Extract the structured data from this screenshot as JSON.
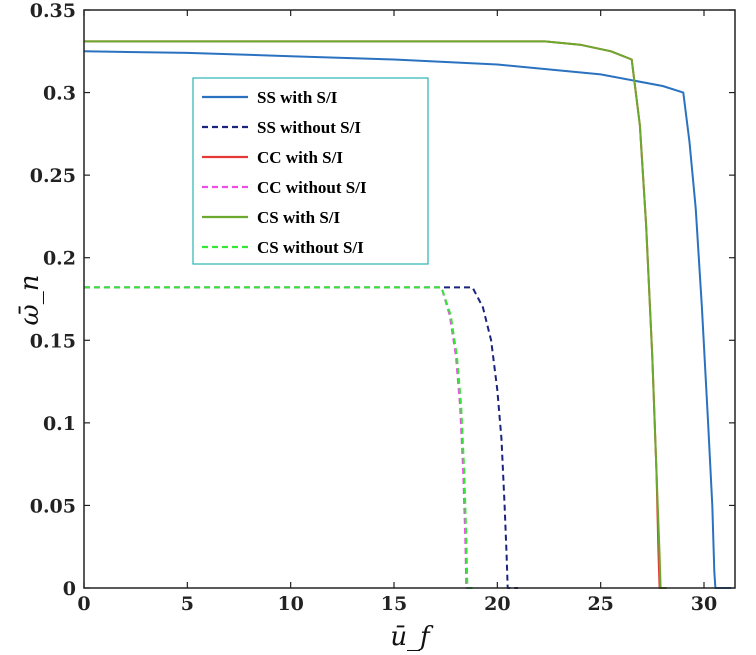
{
  "chart_data": {
    "type": "line",
    "title": "",
    "xlabel": "ū_f",
    "ylabel": "ω̄_n",
    "xlim": [
      0,
      31.5
    ],
    "ylim": [
      0,
      0.35
    ],
    "xticks": [
      0,
      5,
      10,
      15,
      20,
      25,
      30
    ],
    "yticks": [
      0,
      0.05,
      0.1,
      0.15,
      0.2,
      0.25,
      0.3,
      0.35
    ],
    "grid": false,
    "legend_position": "upper-left",
    "series": [
      {
        "name": "SS with S/I",
        "color": "#2a72c0",
        "dash": "solid",
        "x": [
          0,
          5,
          10,
          15,
          20,
          25,
          28.0,
          29.0,
          29.3,
          29.6,
          29.9,
          30.2,
          30.4,
          30.5,
          30.55,
          31.3
        ],
        "y": [
          0.325,
          0.324,
          0.322,
          0.32,
          0.317,
          0.311,
          0.304,
          0.3,
          0.27,
          0.23,
          0.17,
          0.1,
          0.05,
          0.01,
          0,
          0
        ]
      },
      {
        "name": "SS without S/I",
        "color": "#1a237e",
        "dash": "dashed",
        "x": [
          0,
          10,
          18.8,
          19.3,
          19.7,
          20.0,
          20.2,
          20.35,
          20.45,
          20.5,
          21.0
        ],
        "y": [
          0.182,
          0.182,
          0.182,
          0.17,
          0.15,
          0.12,
          0.09,
          0.05,
          0.02,
          0,
          0
        ]
      },
      {
        "name": "CC with S/I",
        "color": "#e53935",
        "dash": "solid",
        "x": [
          0,
          10,
          22.3,
          24,
          25.5,
          26.5,
          26.9,
          27.2,
          27.5,
          27.7,
          27.8,
          27.85,
          28.0
        ],
        "y": [
          0.331,
          0.331,
          0.331,
          0.329,
          0.325,
          0.32,
          0.28,
          0.22,
          0.14,
          0.07,
          0.02,
          0,
          0
        ]
      },
      {
        "name": "CC without S/I",
        "color": "#f04ae8",
        "dash": "dashed",
        "x": [
          0,
          10,
          17.3,
          17.7,
          18.0,
          18.2,
          18.35,
          18.45,
          18.5,
          18.7
        ],
        "y": [
          0.182,
          0.182,
          0.182,
          0.165,
          0.14,
          0.11,
          0.07,
          0.03,
          0,
          0
        ]
      },
      {
        "name": "CS with S/I",
        "color": "#6aa82e",
        "dash": "solid",
        "x": [
          0,
          10,
          22.3,
          24,
          25.5,
          26.5,
          26.9,
          27.2,
          27.5,
          27.7,
          27.85,
          27.9,
          28.2
        ],
        "y": [
          0.331,
          0.331,
          0.331,
          0.329,
          0.325,
          0.32,
          0.28,
          0.22,
          0.14,
          0.07,
          0.02,
          0,
          0
        ]
      },
      {
        "name": "CS without S/I",
        "color": "#33e833",
        "dash": "dashed",
        "x": [
          0,
          10,
          17.3,
          17.75,
          18.05,
          18.25,
          18.4,
          18.5,
          18.55,
          18.8
        ],
        "y": [
          0.182,
          0.182,
          0.182,
          0.165,
          0.14,
          0.11,
          0.07,
          0.03,
          0,
          0
        ]
      }
    ]
  }
}
